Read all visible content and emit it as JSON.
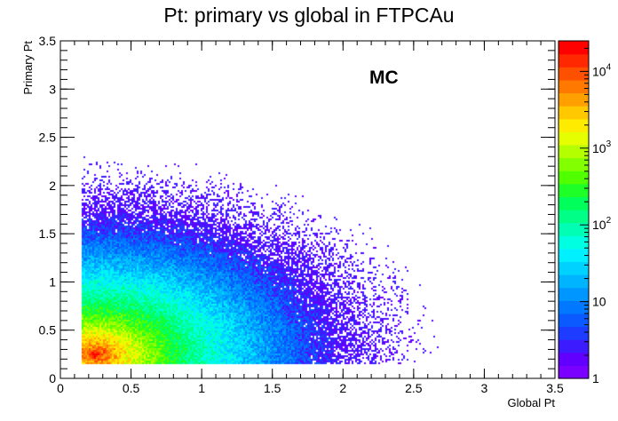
{
  "chart_data": {
    "type": "heatmap",
    "title": "Pt: primary vs global in FTPCAu",
    "xlabel": "Global Pt",
    "ylabel": "Primary Pt",
    "annotation": "MC",
    "xlim": [
      0,
      3.5
    ],
    "ylim": [
      0,
      3.5
    ],
    "x_ticks": [
      "0",
      "0.5",
      "1",
      "1.5",
      "2",
      "2.5",
      "3",
      "3.5"
    ],
    "y_ticks": [
      "0",
      "0.5",
      "1",
      "1.5",
      "2",
      "2.5",
      "3",
      "3.5"
    ],
    "z_scale": "log",
    "z_range": [
      1,
      25000
    ],
    "z_ticks": [
      {
        "value": 1,
        "label": "1"
      },
      {
        "value": 10,
        "label": "10"
      },
      {
        "value": 100,
        "label": "10^2"
      },
      {
        "value": 1000,
        "label": "10^3"
      },
      {
        "value": 10000,
        "label": "10^4"
      }
    ],
    "x_data_start": 0.15,
    "y_data_start": 0.15,
    "peak": {
      "x": 0.25,
      "y": 0.25,
      "count": 25000
    },
    "palette": [
      "#7a00ff",
      "#6200ff",
      "#3c1cff",
      "#1e3cff",
      "#0a5aff",
      "#0078ff",
      "#0096ff",
      "#00b4ff",
      "#00d2ff",
      "#00f0ff",
      "#00ffe1",
      "#00ffb4",
      "#00ff87",
      "#00ff5a",
      "#1eff28",
      "#50ff00",
      "#82ff00",
      "#b4ff00",
      "#e6ff00",
      "#ffeb00",
      "#ffc800",
      "#ffa000",
      "#ff7800",
      "#ff5000",
      "#ff2800",
      "#ff0000"
    ]
  }
}
